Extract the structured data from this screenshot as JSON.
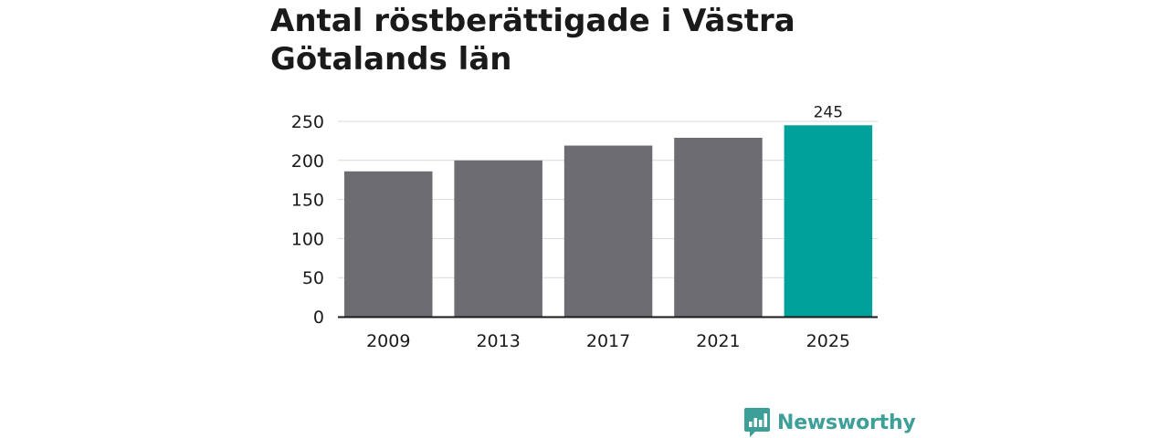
{
  "title": "Antal röstberättigade i Västra Götalands län",
  "brand": {
    "name": "Newsworthy",
    "icon": "chart-speech-bubble-icon"
  },
  "colors": {
    "bar": "#6d6c72",
    "highlight": "#00a19a",
    "grid": "#d9d9d9",
    "axis": "#1a1a1a",
    "text": "#1a1a1a",
    "brand": "#3c9f98"
  },
  "chart_data": {
    "type": "bar",
    "title": "Antal röstberättigade i Västra Götalands län",
    "categories": [
      "2009",
      "2013",
      "2017",
      "2021",
      "2025"
    ],
    "values": [
      186,
      200,
      219,
      229,
      245
    ],
    "highlight_index": 4,
    "data_labels": [
      null,
      null,
      null,
      null,
      "245"
    ],
    "ylim": [
      0,
      250
    ],
    "yticks": [
      0,
      50,
      100,
      150,
      200,
      250
    ],
    "xlabel": "",
    "ylabel": "",
    "grid": true,
    "legend": "none"
  }
}
